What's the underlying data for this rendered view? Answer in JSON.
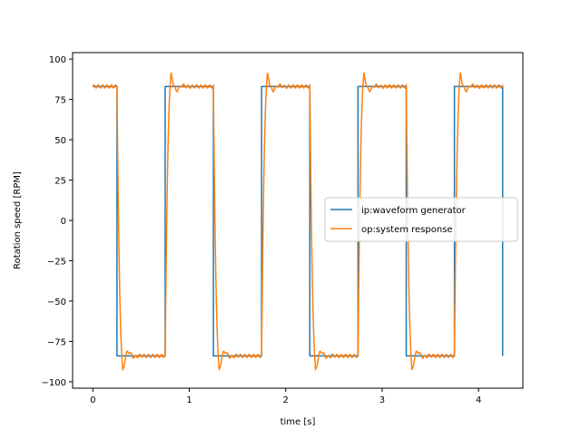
{
  "chart_data": {
    "type": "line",
    "xlabel": "time [s]",
    "ylabel": "Rotation speed [RPM]",
    "xlim": [
      -0.21,
      4.46
    ],
    "ylim": [
      -104,
      104
    ],
    "xticks": [
      0,
      1,
      2,
      3,
      4
    ],
    "yticks": [
      -100,
      -75,
      -50,
      -25,
      0,
      25,
      50,
      75,
      100
    ],
    "grid": false,
    "legend_position": "center-right",
    "series": [
      {
        "name": "ip:waveform generator",
        "color": "#1f77b4",
        "square_wave": {
          "period": 1.0,
          "high": 83,
          "low": -84,
          "high_until": 0.25,
          "high_from": 0.75,
          "t_end": 4.25
        }
      },
      {
        "name": "op:system response",
        "color": "#ff7f0e",
        "response": {
          "period": 1.0,
          "high": 83,
          "low": -84,
          "fall_start": 0.25,
          "rise_start": 0.75,
          "overshoot_high": 91,
          "overshoot_low": -93,
          "t_end": 4.25
        }
      }
    ]
  }
}
